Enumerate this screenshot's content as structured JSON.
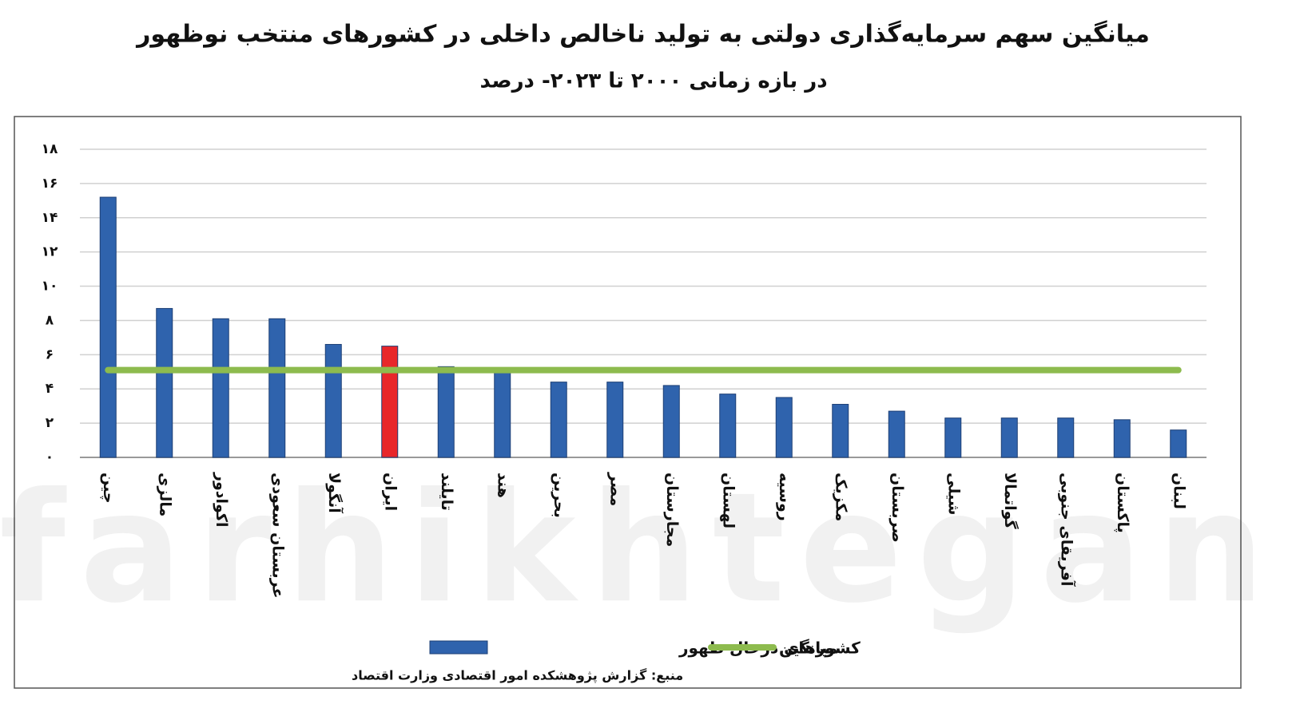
{
  "chart_data": {
    "type": "bar",
    "title": "میانگین سهم سرمایه‌گذاری دولتی به تولید ناخالص داخلی در کشورهای منتخب نوظهور",
    "subtitle": "در بازه زمانی ۲۰۰۰ تا ۲۰۲۳- درصد",
    "source": "منبع: گزارش پژوهشکده امور اقتصادی وزارت اقتصاد",
    "watermark": "farhikhtegan",
    "categories": [
      "چین",
      "مالزی",
      "اکوادور",
      "عربستان سعودی",
      "آنگولا",
      "ایران",
      "تایلند",
      "هند",
      "بحرین",
      "مصر",
      "مجارستان",
      "لهستان",
      "روسیه",
      "مکزیک",
      "صربستان",
      "شیلی",
      "گواتمالا",
      "آفریقای جنوبی",
      "پاکستان",
      "لبنان"
    ],
    "series": [
      {
        "name": "کشورهای درحال ظهور",
        "color": "#2f63ad",
        "colors": [
          "#2f63ad",
          "#2f63ad",
          "#2f63ad",
          "#2f63ad",
          "#2f63ad",
          "#e8262a",
          "#2f63ad",
          "#2f63ad",
          "#2f63ad",
          "#2f63ad",
          "#2f63ad",
          "#2f63ad",
          "#2f63ad",
          "#2f63ad",
          "#2f63ad",
          "#2f63ad",
          "#2f63ad",
          "#2f63ad",
          "#2f63ad",
          "#2f63ad"
        ],
        "values": [
          15.2,
          8.7,
          8.1,
          8.1,
          6.6,
          6.5,
          5.3,
          5.2,
          4.4,
          4.4,
          4.2,
          3.7,
          3.5,
          3.1,
          2.7,
          2.3,
          2.3,
          2.3,
          2.2,
          1.6
        ]
      },
      {
        "name": "میانگین",
        "color": "#8dbb4e",
        "type": "line",
        "values": [
          5.1,
          5.1,
          5.1,
          5.1,
          5.1,
          5.1,
          5.1,
          5.1,
          5.1,
          5.1,
          5.1,
          5.1,
          5.1,
          5.1,
          5.1,
          5.1,
          5.1,
          5.1,
          5.1,
          5.1
        ]
      }
    ],
    "ylim": [
      0,
      18
    ],
    "yticks": [
      {
        "value": 0,
        "label": "۰"
      },
      {
        "value": 2,
        "label": "۲"
      },
      {
        "value": 4,
        "label": "۴"
      },
      {
        "value": 6,
        "label": "۶"
      },
      {
        "value": 8,
        "label": "۸"
      },
      {
        "value": 10,
        "label": "۱۰"
      },
      {
        "value": 12,
        "label": "۱۲"
      },
      {
        "value": 14,
        "label": "۱۴"
      },
      {
        "value": 16,
        "label": "۱۶"
      },
      {
        "value": 18,
        "label": "۱۸"
      }
    ],
    "grid": true
  }
}
